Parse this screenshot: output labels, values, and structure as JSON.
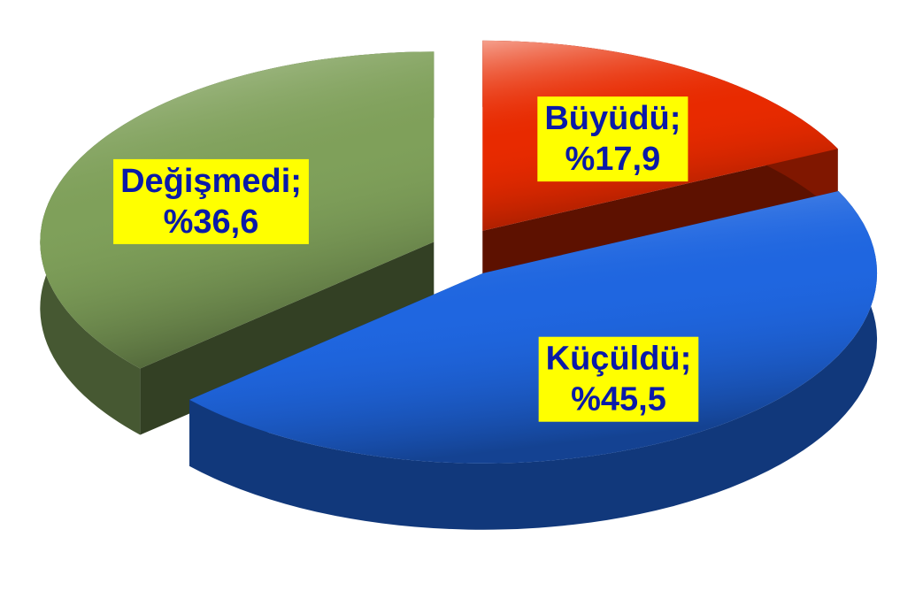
{
  "chart_data": {
    "type": "pie",
    "categories": [
      "Büyüdü;",
      "Küçüldü;",
      "Değişmedi;"
    ],
    "values": [
      17.9,
      45.5,
      36.6
    ],
    "value_labels": [
      "%17,9",
      "%45,5",
      "%36,6"
    ],
    "colors": [
      "#e82a00",
      "#1f66e0",
      "#7fa05a"
    ]
  }
}
